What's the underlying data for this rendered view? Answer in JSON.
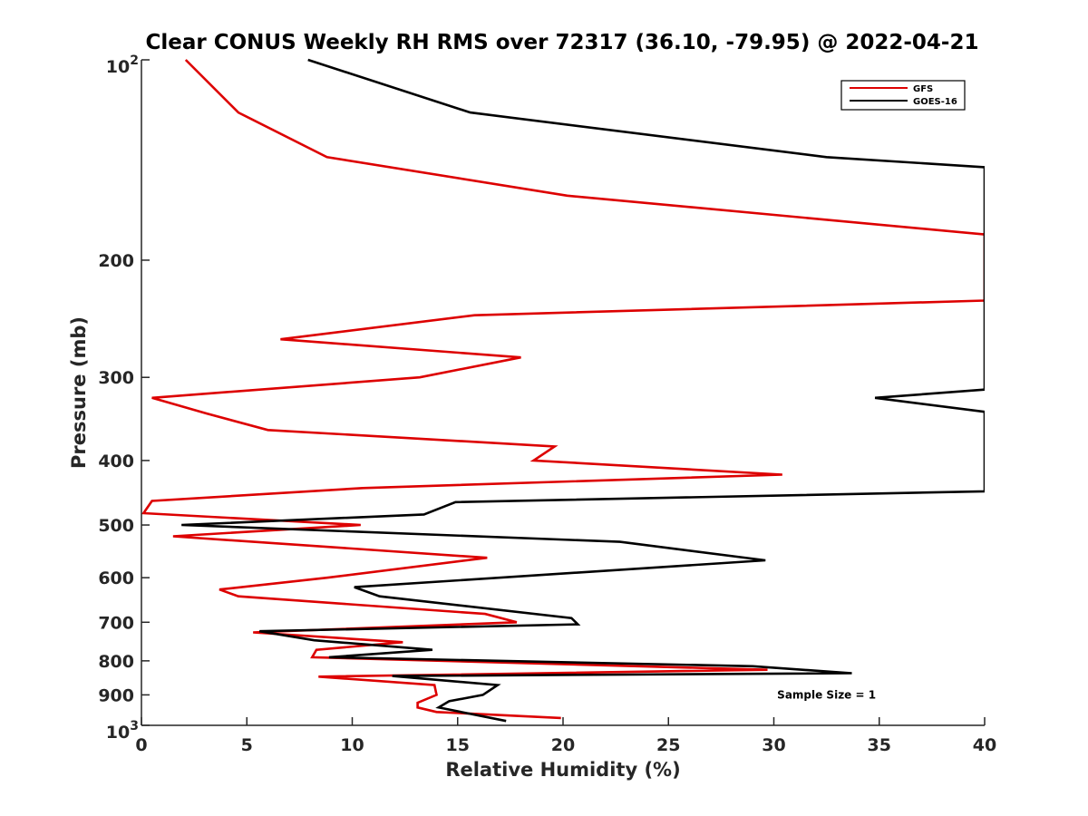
{
  "chart_data": {
    "type": "line",
    "title": "Clear CONUS Weekly RH RMS over 72317 (36.10, -79.95) @ 2022-04-21",
    "xlabel": "Relative Humidity (%)",
    "ylabel": "Pressure (mb)",
    "xlim": [
      0,
      40
    ],
    "ylim": [
      100,
      1000
    ],
    "y_scale": "log",
    "y_reversed": true,
    "grid": false,
    "legend_position": "top-right",
    "x_ticks": [
      {
        "value": 0,
        "label": "0"
      },
      {
        "value": 5,
        "label": "5"
      },
      {
        "value": 10,
        "label": "10"
      },
      {
        "value": 15,
        "label": "15"
      },
      {
        "value": 20,
        "label": "20"
      },
      {
        "value": 25,
        "label": "25"
      },
      {
        "value": 30,
        "label": "30"
      },
      {
        "value": 35,
        "label": "35"
      },
      {
        "value": 40,
        "label": "40"
      }
    ],
    "y_ticks": [
      {
        "value": 100,
        "label": "10",
        "sup": "2"
      },
      {
        "value": 200,
        "label": "200",
        "sup": ""
      },
      {
        "value": 300,
        "label": "300",
        "sup": ""
      },
      {
        "value": 400,
        "label": "400",
        "sup": ""
      },
      {
        "value": 500,
        "label": "500",
        "sup": ""
      },
      {
        "value": 600,
        "label": "600",
        "sup": ""
      },
      {
        "value": 700,
        "label": "700",
        "sup": ""
      },
      {
        "value": 800,
        "label": "800",
        "sup": ""
      },
      {
        "value": 900,
        "label": "900",
        "sup": ""
      },
      {
        "value": 1000,
        "label": "10",
        "sup": "3"
      }
    ],
    "series": [
      {
        "name": "GFS",
        "color": "#dd0000",
        "points": [
          {
            "x": 2.1,
            "p": 100
          },
          {
            "x": 4.6,
            "p": 120
          },
          {
            "x": 8.8,
            "p": 140
          },
          {
            "x": 20.2,
            "p": 160
          },
          {
            "x": 40.0,
            "p": 183
          },
          {
            "x": 40.0,
            "p": 230
          },
          {
            "x": 15.8,
            "p": 242
          },
          {
            "x": 6.6,
            "p": 263
          },
          {
            "x": 18.0,
            "p": 280
          },
          {
            "x": 13.2,
            "p": 300
          },
          {
            "x": 0.5,
            "p": 322
          },
          {
            "x": 3.1,
            "p": 340
          },
          {
            "x": 6.0,
            "p": 360
          },
          {
            "x": 19.6,
            "p": 381
          },
          {
            "x": 18.6,
            "p": 400
          },
          {
            "x": 30.4,
            "p": 420
          },
          {
            "x": 10.5,
            "p": 440
          },
          {
            "x": 0.5,
            "p": 460
          },
          {
            "x": 0.1,
            "p": 480
          },
          {
            "x": 10.4,
            "p": 500
          },
          {
            "x": 1.5,
            "p": 520
          },
          {
            "x": 16.4,
            "p": 560
          },
          {
            "x": 8.8,
            "p": 600
          },
          {
            "x": 3.7,
            "p": 625
          },
          {
            "x": 4.6,
            "p": 640
          },
          {
            "x": 16.3,
            "p": 680
          },
          {
            "x": 17.8,
            "p": 700
          },
          {
            "x": 5.3,
            "p": 725
          },
          {
            "x": 12.4,
            "p": 750
          },
          {
            "x": 8.3,
            "p": 770
          },
          {
            "x": 8.1,
            "p": 790
          },
          {
            "x": 29.7,
            "p": 825
          },
          {
            "x": 8.4,
            "p": 845
          },
          {
            "x": 13.9,
            "p": 870
          },
          {
            "x": 14.0,
            "p": 900
          },
          {
            "x": 13.1,
            "p": 925
          },
          {
            "x": 13.1,
            "p": 940
          },
          {
            "x": 14.0,
            "p": 955
          },
          {
            "x": 19.9,
            "p": 975
          }
        ]
      },
      {
        "name": "GOES-16",
        "color": "#000000",
        "points": [
          {
            "x": 7.9,
            "p": 100
          },
          {
            "x": 15.6,
            "p": 120
          },
          {
            "x": 32.5,
            "p": 140
          },
          {
            "x": 40.0,
            "p": 145
          },
          {
            "x": 40.0,
            "p": 313
          },
          {
            "x": 34.8,
            "p": 322
          },
          {
            "x": 40.0,
            "p": 338
          },
          {
            "x": 40.0,
            "p": 445
          },
          {
            "x": 14.9,
            "p": 462
          },
          {
            "x": 13.4,
            "p": 482
          },
          {
            "x": 1.9,
            "p": 500
          },
          {
            "x": 22.7,
            "p": 530
          },
          {
            "x": 29.6,
            "p": 565
          },
          {
            "x": 10.1,
            "p": 620
          },
          {
            "x": 11.3,
            "p": 640
          },
          {
            "x": 20.4,
            "p": 690
          },
          {
            "x": 20.7,
            "p": 705
          },
          {
            "x": 5.6,
            "p": 722
          },
          {
            "x": 8.2,
            "p": 745
          },
          {
            "x": 13.8,
            "p": 770
          },
          {
            "x": 8.9,
            "p": 790
          },
          {
            "x": 29.0,
            "p": 815
          },
          {
            "x": 33.7,
            "p": 835
          },
          {
            "x": 11.9,
            "p": 843
          },
          {
            "x": 16.9,
            "p": 870
          },
          {
            "x": 16.2,
            "p": 900
          },
          {
            "x": 14.6,
            "p": 920
          },
          {
            "x": 14.1,
            "p": 940
          },
          {
            "x": 17.3,
            "p": 985
          }
        ]
      }
    ],
    "annotations": [
      {
        "text": "Sample Size = 1",
        "x": 32.5,
        "p": 900
      }
    ]
  }
}
